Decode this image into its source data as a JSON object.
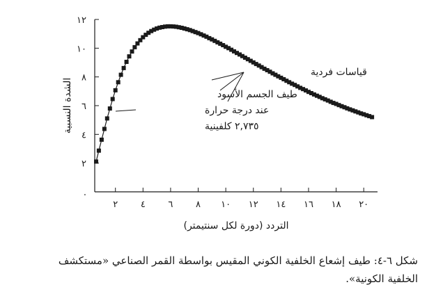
{
  "chart_data": {
    "type": "scatter",
    "ylabel": "الشدة النسبية",
    "xlabel": "التردد (دورة لكل سنتيمتر)",
    "xlim": [
      0.5,
      21
    ],
    "ylim": [
      0,
      12
    ],
    "xticks": [
      2,
      4,
      6,
      8,
      10,
      12,
      14,
      16,
      18,
      20
    ],
    "xtick_labels": [
      "٢",
      "٤",
      "٦",
      "٨",
      "١٠",
      "١٢",
      "١٤",
      "١٦",
      "١٨",
      "٢٠"
    ],
    "yticks": [
      0,
      2,
      4,
      6,
      8,
      10,
      12
    ],
    "ytick_labels": [
      ".",
      "٢",
      "٤",
      "٦",
      "٨",
      "١٠",
      "١٢"
    ],
    "grid": false,
    "series": [
      {
        "marker": "square",
        "x": [
          0.6,
          0.8,
          1.0,
          1.2,
          1.4,
          1.6,
          1.8,
          2.0,
          2.2,
          2.4,
          2.6,
          2.8,
          3.0,
          3.2,
          3.4,
          3.6,
          3.8,
          4.0,
          4.2,
          4.4,
          4.6,
          4.8,
          5.0,
          5.2,
          5.4,
          5.6,
          5.8,
          6.0,
          6.2,
          6.4,
          6.6,
          6.8,
          7.0,
          7.2,
          7.4,
          7.6,
          7.8,
          8.0,
          8.2,
          8.4,
          8.6,
          8.8,
          9.0,
          9.2,
          9.4,
          9.6,
          9.8,
          10.0,
          10.2,
          10.4,
          10.6,
          10.8,
          11.0,
          11.2,
          11.4,
          11.6,
          11.8,
          12.0,
          12.2,
          12.4,
          12.6,
          12.8,
          13.0,
          13.2,
          13.4,
          13.6,
          13.8,
          14.0,
          14.2,
          14.4,
          14.6,
          14.8,
          15.0,
          15.2,
          15.4,
          15.6,
          15.8,
          16.0,
          16.2,
          16.4,
          16.6,
          16.8,
          17.0,
          17.2,
          17.4,
          17.6,
          17.8,
          18.0,
          18.2,
          18.4,
          18.6,
          18.8,
          19.0,
          19.2,
          19.4,
          19.6,
          19.8,
          20.0,
          20.2,
          20.4,
          20.6
        ],
        "y": [
          2.11,
          2.87,
          3.63,
          4.38,
          5.11,
          5.8,
          6.46,
          7.07,
          7.63,
          8.15,
          8.62,
          9.05,
          9.43,
          9.77,
          10.07,
          10.33,
          10.56,
          10.76,
          10.93,
          11.07,
          11.19,
          11.29,
          11.37,
          11.43,
          11.47,
          11.5,
          11.52,
          11.52,
          11.51,
          11.49,
          11.46,
          11.42,
          11.37,
          11.32,
          11.26,
          11.19,
          11.12,
          11.05,
          10.97,
          10.88,
          10.8,
          10.7,
          10.61,
          10.51,
          10.41,
          10.31,
          10.21,
          10.1,
          10.0,
          9.89,
          9.78,
          9.67,
          9.56,
          9.45,
          9.34,
          9.23,
          9.12,
          9.01,
          8.9,
          8.79,
          8.68,
          8.57,
          8.47,
          8.36,
          8.25,
          8.15,
          8.04,
          7.94,
          7.84,
          7.73,
          7.63,
          7.53,
          7.44,
          7.34,
          7.24,
          7.15,
          7.06,
          6.96,
          6.87,
          6.78,
          6.69,
          6.61,
          6.52,
          6.44,
          6.36,
          6.27,
          6.19,
          6.12,
          6.04,
          5.96,
          5.89,
          5.81,
          5.74,
          5.67,
          5.6,
          5.53,
          5.46,
          5.4,
          5.33,
          5.27,
          5.2
        ]
      }
    ],
    "annotations": {
      "measurements": "قياسات فردية",
      "blackbody_lines": [
        "طيف الجسم الأسود",
        "عند درجة حرارة",
        "٢,٧٣٥ كلفينية"
      ]
    }
  },
  "caption": {
    "line1": "شكل ٦-٤: طيف إشعاع الخلفية الكوني المقيس بواسطة القمر الصناعي «مستكشف",
    "line2": "الخلفية الكونية»."
  }
}
